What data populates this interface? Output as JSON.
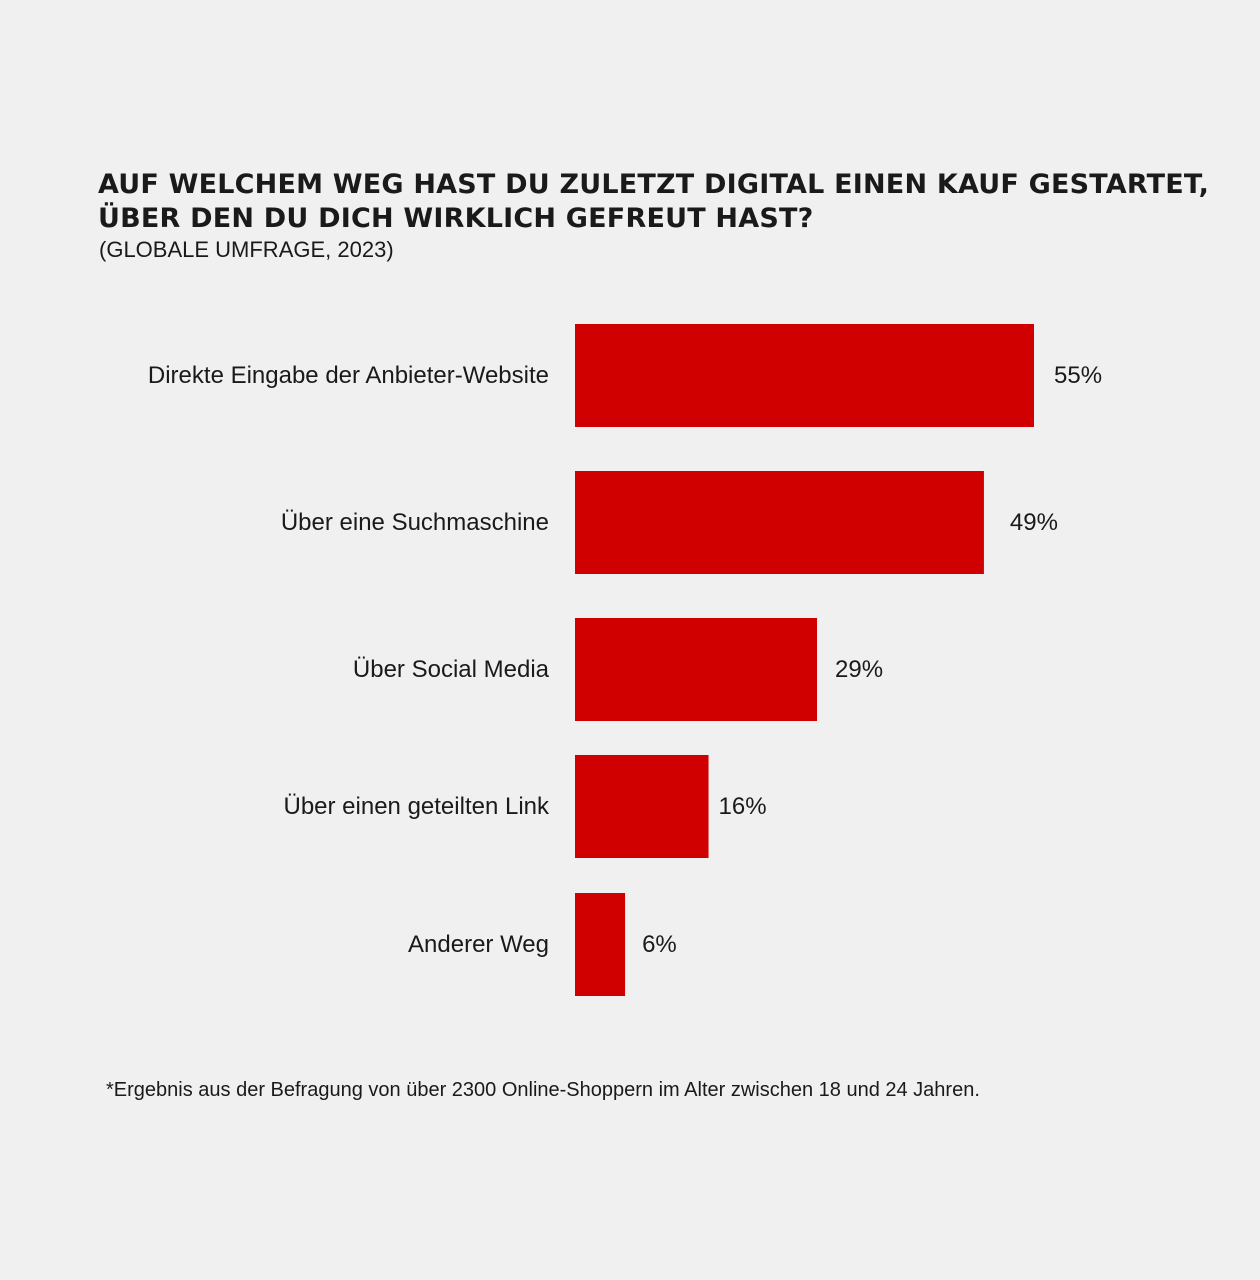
{
  "chart_data": {
    "type": "bar",
    "orientation": "horizontal",
    "title_lines": [
      "AUF WELCHEM WEG HAST DU ZULETZT DIGITAL EINEN KAUF GESTARTET,",
      "ÜBER DEN DU DICH WIRKLICH GEFREUT HAST?"
    ],
    "subtitle": "(GLOBALE UMFRAGE, 2023)",
    "categories": [
      "Direkte Eingabe der Anbieter-Website",
      "Über eine Suchmaschine",
      "Über Social Media",
      "Über einen geteilten Link",
      "Anderer Weg"
    ],
    "values": [
      55,
      49,
      29,
      16,
      6
    ],
    "value_labels": [
      "55%",
      "49%",
      "29%",
      "16%",
      "6%"
    ],
    "unit": "%",
    "bar_color": "#d10000",
    "grid": false,
    "legend": "none",
    "footnote": "*Ergebnis aus der Befragung von über 2300 Online-Shoppern im Alter zwischen 18 und 24 Jahren."
  }
}
